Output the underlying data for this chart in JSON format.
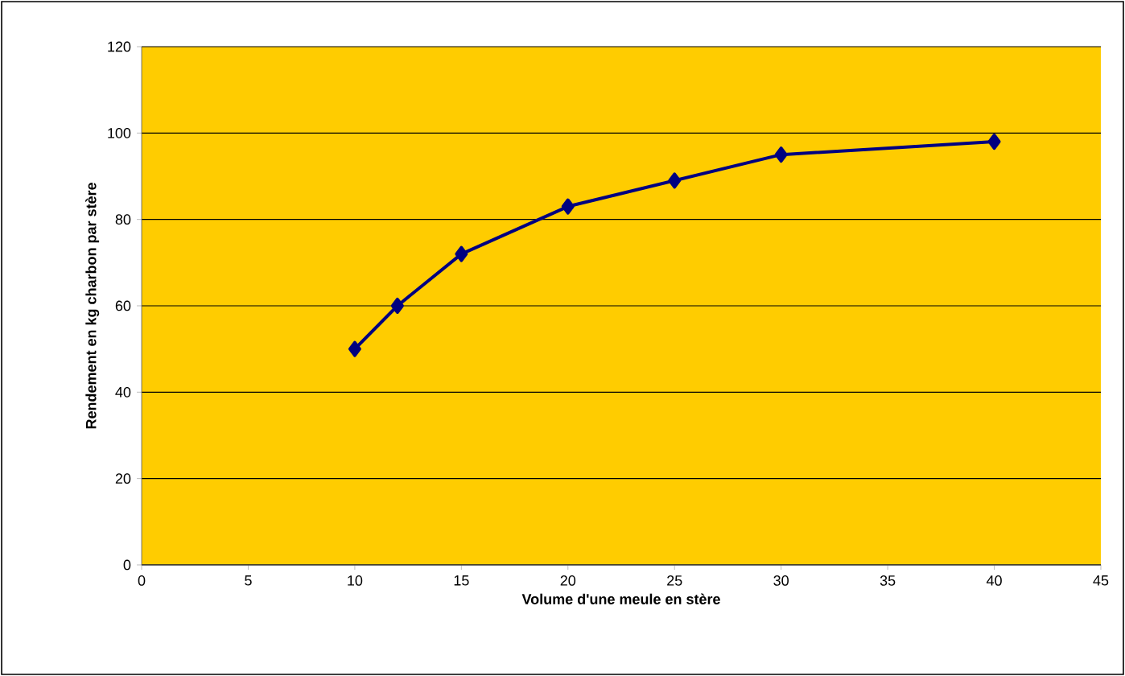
{
  "chart_data": {
    "type": "line",
    "xlabel": "Volume d'une meule en stère",
    "ylabel": "Rendement en kg charbon par stère",
    "x": [
      10,
      12,
      15,
      20,
      25,
      30,
      40
    ],
    "series": [
      {
        "color": "#000080",
        "values": [
          50,
          60,
          72,
          83,
          89,
          95,
          98
        ]
      }
    ],
    "xlim": [
      0,
      45
    ],
    "xticks": [
      0,
      5,
      10,
      15,
      20,
      25,
      30,
      35,
      40,
      45
    ],
    "ylim": [
      0,
      120
    ],
    "yticks": [
      0,
      20,
      40,
      60,
      80,
      100,
      120
    ],
    "grid": "y",
    "marker": "diamond",
    "line_style": "solid"
  }
}
